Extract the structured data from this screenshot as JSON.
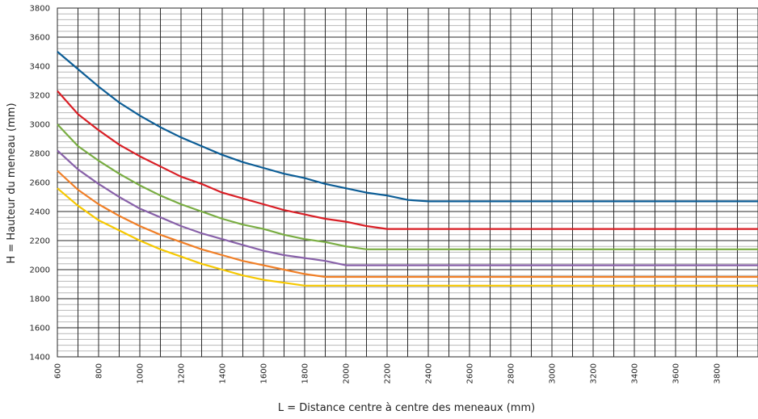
{
  "chart_data": {
    "type": "line",
    "title": "",
    "xlabel": "L = Distance centre à centre des meneaux (mm)",
    "ylabel": "H = Hauteur du meneau (mm)",
    "xlim": [
      600,
      4000
    ],
    "ylim": [
      1400,
      3800
    ],
    "x_ticks": [
      600,
      800,
      1000,
      1200,
      1400,
      1600,
      1800,
      2000,
      2200,
      2400,
      2600,
      2800,
      3000,
      3200,
      3400,
      3600,
      3800
    ],
    "y_ticks": [
      1400,
      1600,
      1800,
      2000,
      2200,
      2400,
      2600,
      2800,
      3000,
      3200,
      3400,
      3600,
      3800
    ],
    "grid": true,
    "legend": "none",
    "series": [
      {
        "color": "#0c5d96",
        "points": [
          [
            600,
            3500
          ],
          [
            700,
            3380
          ],
          [
            800,
            3260
          ],
          [
            900,
            3150
          ],
          [
            1000,
            3060
          ],
          [
            1100,
            2980
          ],
          [
            1200,
            2910
          ],
          [
            1300,
            2850
          ],
          [
            1400,
            2790
          ],
          [
            1500,
            2740
          ],
          [
            1600,
            2700
          ],
          [
            1700,
            2660
          ],
          [
            1800,
            2630
          ],
          [
            1900,
            2590
          ],
          [
            2000,
            2560
          ],
          [
            2100,
            2530
          ],
          [
            2200,
            2510
          ],
          [
            2300,
            2480
          ],
          [
            2400,
            2470
          ],
          [
            4000,
            2470
          ]
        ]
      },
      {
        "color": "#d91f26",
        "points": [
          [
            600,
            3230
          ],
          [
            700,
            3070
          ],
          [
            800,
            2960
          ],
          [
            900,
            2860
          ],
          [
            1000,
            2780
          ],
          [
            1100,
            2710
          ],
          [
            1200,
            2640
          ],
          [
            1300,
            2590
          ],
          [
            1400,
            2530
          ],
          [
            1500,
            2490
          ],
          [
            1600,
            2450
          ],
          [
            1700,
            2410
          ],
          [
            1800,
            2380
          ],
          [
            1900,
            2350
          ],
          [
            2000,
            2330
          ],
          [
            2100,
            2300
          ],
          [
            2200,
            2280
          ],
          [
            4000,
            2280
          ]
        ]
      },
      {
        "color": "#79ad42",
        "points": [
          [
            600,
            3000
          ],
          [
            700,
            2850
          ],
          [
            800,
            2750
          ],
          [
            900,
            2660
          ],
          [
            1000,
            2580
          ],
          [
            1100,
            2510
          ],
          [
            1200,
            2450
          ],
          [
            1300,
            2400
          ],
          [
            1400,
            2350
          ],
          [
            1500,
            2310
          ],
          [
            1600,
            2280
          ],
          [
            1700,
            2240
          ],
          [
            1800,
            2210
          ],
          [
            1900,
            2190
          ],
          [
            2000,
            2160
          ],
          [
            2100,
            2140
          ],
          [
            4000,
            2140
          ]
        ]
      },
      {
        "color": "#8861a9",
        "points": [
          [
            600,
            2820
          ],
          [
            700,
            2690
          ],
          [
            800,
            2590
          ],
          [
            900,
            2500
          ],
          [
            1000,
            2420
          ],
          [
            1100,
            2360
          ],
          [
            1200,
            2300
          ],
          [
            1300,
            2250
          ],
          [
            1400,
            2210
          ],
          [
            1500,
            2170
          ],
          [
            1600,
            2130
          ],
          [
            1700,
            2100
          ],
          [
            1800,
            2080
          ],
          [
            1900,
            2060
          ],
          [
            2000,
            2030
          ],
          [
            4000,
            2030
          ]
        ]
      },
      {
        "color": "#f07f27",
        "points": [
          [
            600,
            2680
          ],
          [
            700,
            2550
          ],
          [
            800,
            2450
          ],
          [
            900,
            2370
          ],
          [
            1000,
            2300
          ],
          [
            1100,
            2240
          ],
          [
            1200,
            2190
          ],
          [
            1300,
            2140
          ],
          [
            1400,
            2100
          ],
          [
            1500,
            2060
          ],
          [
            1600,
            2030
          ],
          [
            1700,
            2000
          ],
          [
            1800,
            1970
          ],
          [
            1900,
            1950
          ],
          [
            4000,
            1950
          ]
        ]
      },
      {
        "color": "#f6c800",
        "points": [
          [
            600,
            2560
          ],
          [
            700,
            2440
          ],
          [
            800,
            2340
          ],
          [
            900,
            2270
          ],
          [
            1000,
            2200
          ],
          [
            1100,
            2140
          ],
          [
            1200,
            2090
          ],
          [
            1300,
            2040
          ],
          [
            1400,
            2000
          ],
          [
            1500,
            1960
          ],
          [
            1600,
            1930
          ],
          [
            1700,
            1910
          ],
          [
            1800,
            1890
          ],
          [
            4000,
            1890
          ]
        ]
      }
    ]
  }
}
